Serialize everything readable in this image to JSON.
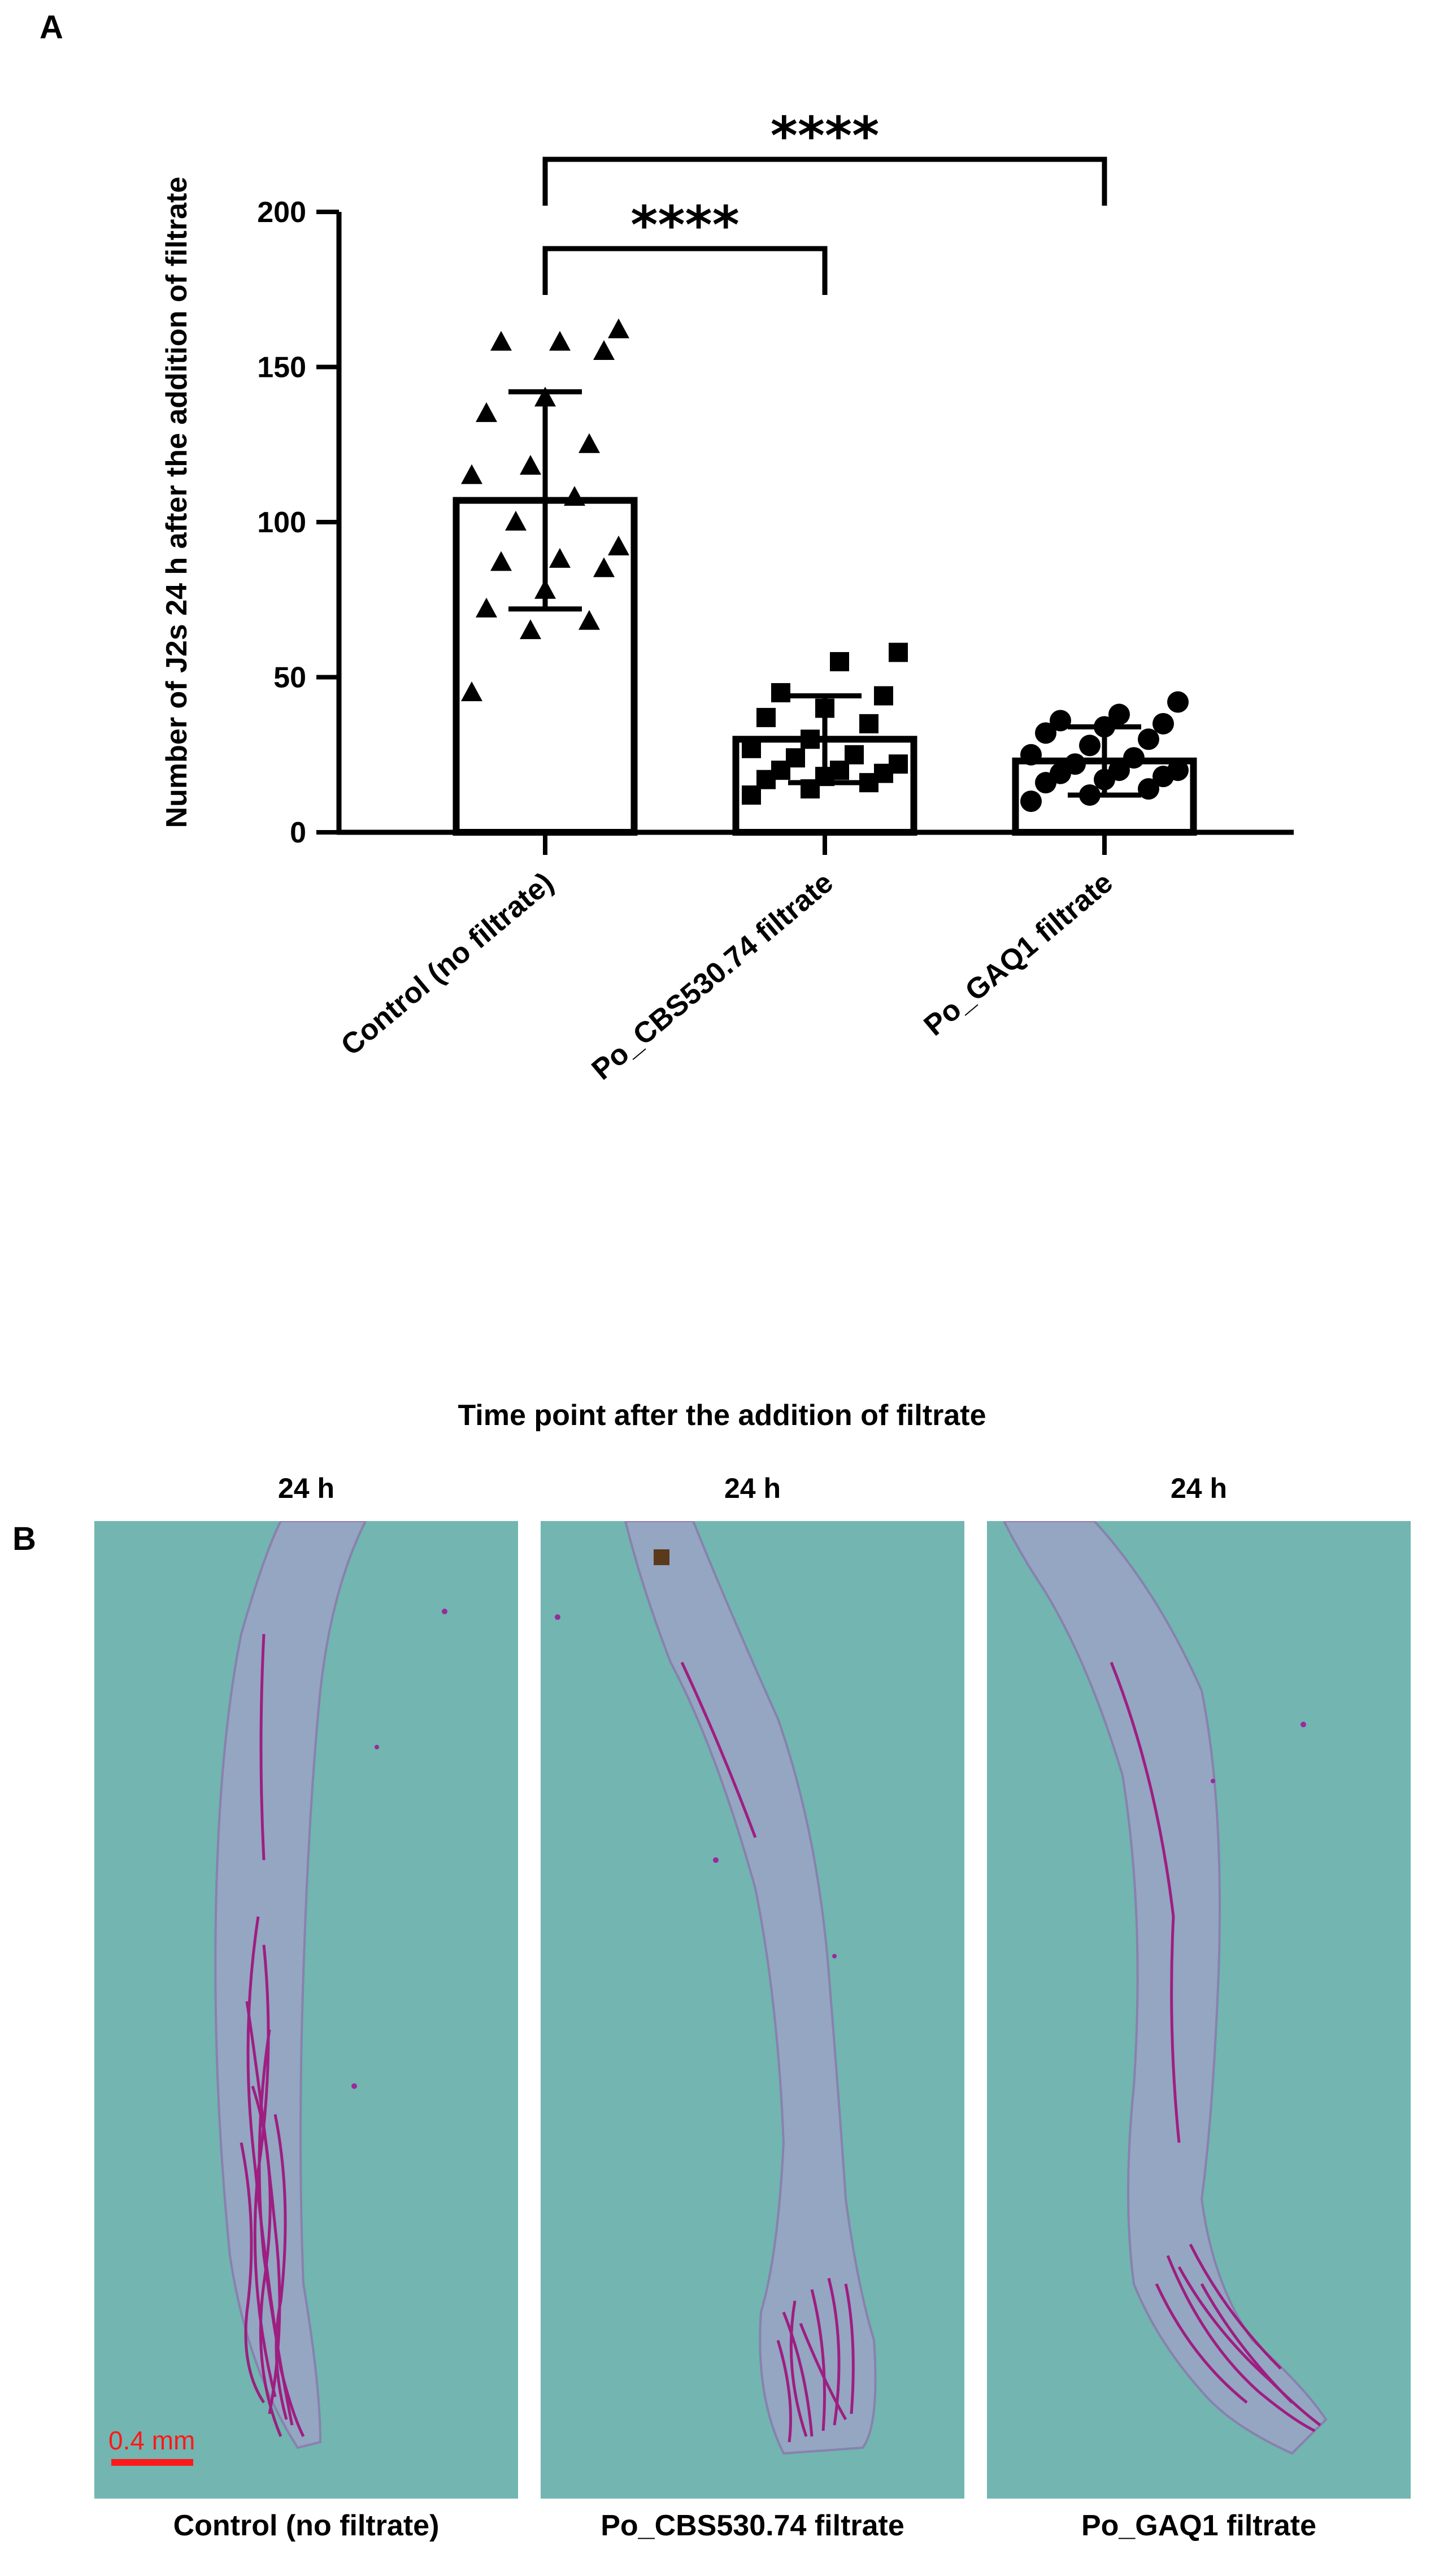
{
  "panel_a_letter": "A",
  "panel_b_letter": "B",
  "chart_data": {
    "type": "bar",
    "categories": [
      "Control (no filtrate)",
      "Po_CBS530.74 filtrate",
      "Po_GAQ1 filtrate"
    ],
    "values": [
      107,
      30,
      23
    ],
    "sd": [
      35,
      14,
      11
    ],
    "ylabel": "Number of J2s 24 h after the addition of filtrate",
    "xlabel": "",
    "ylim": [
      0,
      200
    ],
    "yticks": [
      0,
      50,
      100,
      150,
      200
    ],
    "marker_shapes": [
      "triangle",
      "square",
      "circle"
    ],
    "points": [
      [
        45,
        65,
        68,
        72,
        78,
        85,
        87,
        88,
        92,
        100,
        108,
        115,
        118,
        125,
        135,
        140,
        155,
        158,
        158,
        162
      ],
      [
        12,
        14,
        16,
        17,
        18,
        19,
        20,
        20,
        22,
        24,
        25,
        27,
        30,
        35,
        37,
        40,
        44,
        45,
        55,
        58
      ],
      [
        10,
        12,
        14,
        16,
        17,
        18,
        19,
        20,
        20,
        22,
        24,
        25,
        28,
        30,
        32,
        34,
        35,
        36,
        38,
        42
      ]
    ],
    "significance": [
      {
        "from": 0,
        "to": 2,
        "label": "****"
      },
      {
        "from": 0,
        "to": 1,
        "label": "****"
      }
    ],
    "bar_fill": "#ffffff",
    "bar_stroke": "#000000"
  },
  "panel_b": {
    "title": "Time point after the addition of filtrate",
    "time_labels": [
      "24 h",
      "24 h",
      "24 h"
    ],
    "captions": [
      "Control (no filtrate)",
      "Po_CBS530.74 filtrate",
      "Po_GAQ1 filtrate"
    ],
    "scale_bar": "0.4 mm",
    "background_color": "#72b5b1",
    "stain_color": "#a0107a"
  }
}
